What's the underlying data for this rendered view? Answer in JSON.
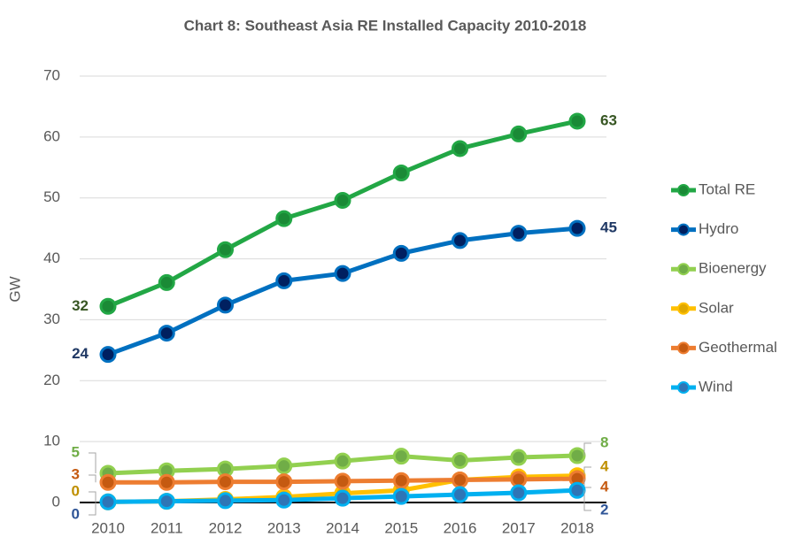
{
  "chart_data": {
    "type": "line",
    "title": "Chart 8: Southeast Asia RE Installed Capacity 2010-2018",
    "y_label": "GW",
    "categories": [
      "2010",
      "2011",
      "2012",
      "2013",
      "2014",
      "2015",
      "2016",
      "2017",
      "2018"
    ],
    "ylim": [
      0,
      70
    ],
    "yticks": [
      0,
      10,
      20,
      30,
      40,
      50,
      60,
      70
    ],
    "grid": true,
    "legend": "right",
    "series": [
      {
        "name": "Total RE",
        "color": "#22a745",
        "marker_color": "#1a8a36",
        "label_color": "#375623",
        "values": [
          32.2,
          36.1,
          41.5,
          46.6,
          49.6,
          54.1,
          58.1,
          60.5,
          62.6
        ],
        "value_labels": [
          "32",
          null,
          null,
          null,
          null,
          null,
          null,
          null,
          "63"
        ]
      },
      {
        "name": "Hydro",
        "color": "#0070c0",
        "marker_color": "#002060",
        "label_color": "#1f3864",
        "values": [
          24.3,
          27.8,
          32.4,
          36.4,
          37.6,
          40.9,
          43.0,
          44.2,
          45.0
        ],
        "value_labels": [
          "24",
          null,
          null,
          null,
          null,
          null,
          null,
          null,
          "45"
        ]
      },
      {
        "name": "Bioenergy",
        "color": "#92d050",
        "marker_color": "#70ad47",
        "label_color": "#70ad47",
        "values": [
          4.8,
          5.2,
          5.5,
          6.0,
          6.8,
          7.6,
          6.9,
          7.4,
          7.7
        ],
        "value_labels": [
          "5",
          null,
          null,
          null,
          null,
          null,
          null,
          null,
          "8"
        ]
      },
      {
        "name": "Solar",
        "color": "#ffc000",
        "marker_color": "#e0a800",
        "label_color": "#bf8f00",
        "values": [
          0.1,
          0.2,
          0.5,
          0.9,
          1.5,
          2.0,
          3.7,
          4.2,
          4.4
        ],
        "value_labels": [
          "0",
          null,
          null,
          null,
          null,
          null,
          null,
          null,
          "4"
        ]
      },
      {
        "name": "Geothermal",
        "color": "#ed7d31",
        "marker_color": "#c55a11",
        "label_color": "#c55a11",
        "values": [
          3.3,
          3.3,
          3.4,
          3.4,
          3.5,
          3.6,
          3.7,
          3.8,
          3.9
        ],
        "value_labels": [
          "3",
          null,
          null,
          null,
          null,
          null,
          null,
          null,
          "4"
        ]
      },
      {
        "name": "Wind",
        "color": "#00b0f0",
        "marker_color": "#2e75b6",
        "label_color": "#2f5597",
        "values": [
          0.1,
          0.2,
          0.3,
          0.4,
          0.7,
          1.0,
          1.3,
          1.6,
          2.0
        ],
        "value_labels": [
          "0",
          null,
          null,
          null,
          null,
          null,
          null,
          null,
          "2"
        ]
      }
    ]
  }
}
